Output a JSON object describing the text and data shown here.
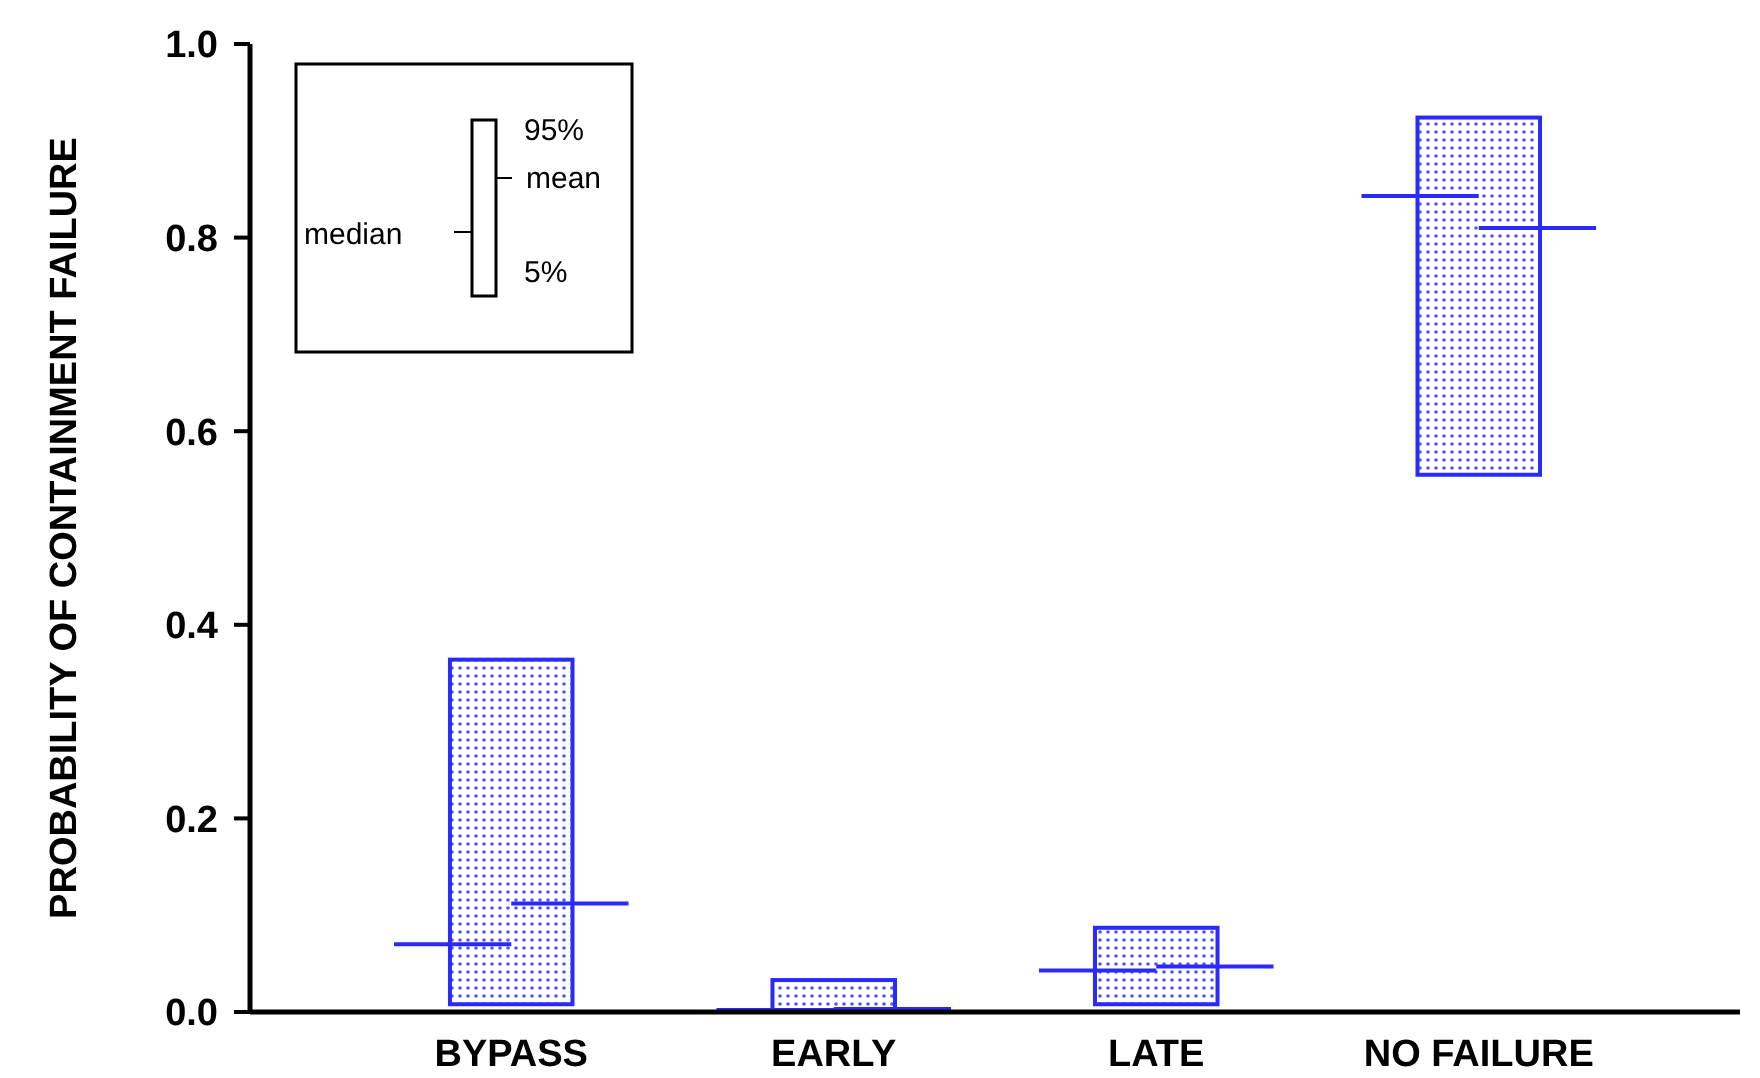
{
  "chart_data": {
    "type": "box",
    "ylabel": "PROBABILITY OF CONTAINMENT FAILURE",
    "categories": [
      "BYPASS",
      "EARLY",
      "LATE",
      "NO FAILURE"
    ],
    "ylim": [
      0,
      1
    ],
    "yticks": [
      {
        "value": 0,
        "label": "0.0"
      },
      0.2,
      0.4,
      0.6,
      0.8,
      {
        "value": 1,
        "label": "1.0"
      }
    ],
    "series": [
      {
        "color": "#2a2aff",
        "boxes": [
          {
            "low": 0.008,
            "q1": 0.008,
            "median": 0.07,
            "q3": 0.364,
            "high": 0.364,
            "mean": 0.112
          },
          {
            "low": 0.002,
            "q1": 0.002,
            "median": 0.002,
            "q3": 0.033,
            "high": 0.033,
            "mean": 0.003
          },
          {
            "low": 0.008,
            "q1": 0.008,
            "median": 0.043,
            "q3": 0.087,
            "high": 0.087,
            "mean": 0.047
          },
          {
            "low": 0.555,
            "q1": 0.555,
            "median": 0.843,
            "q3": 0.924,
            "high": 0.924,
            "mean": 0.81
          }
        ]
      }
    ],
    "annotations": [
      "95%",
      "mean",
      "median",
      "5%"
    ]
  }
}
